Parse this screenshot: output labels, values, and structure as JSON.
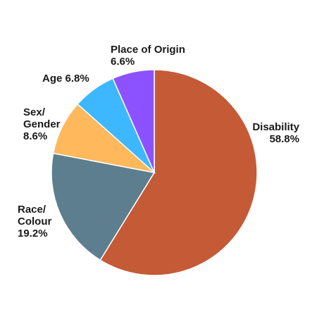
{
  "chart_data": {
    "type": "pie",
    "start_angle_deg": 0,
    "direction": "clockwise",
    "slices": [
      {
        "key": "disability",
        "label_lines": [
          "Disability",
          "58.8%"
        ],
        "value": 58.8,
        "color": "#c55a36"
      },
      {
        "key": "race-colour",
        "label_lines": [
          "Race/",
          "Colour",
          "19.2%"
        ],
        "value": 19.2,
        "color": "#5d7e8e"
      },
      {
        "key": "sex-gender",
        "label_lines": [
          "Sex/",
          "Gender",
          "8.6%"
        ],
        "value": 8.6,
        "color": "#ffb85c"
      },
      {
        "key": "age",
        "label_lines": [
          "Age 6.8%"
        ],
        "value": 6.8,
        "color": "#3db8ff"
      },
      {
        "key": "place-of-origin",
        "label_lines": [
          "Place of Origin",
          "6.6%"
        ],
        "value": 6.6,
        "color": "#8c52ff"
      }
    ]
  }
}
